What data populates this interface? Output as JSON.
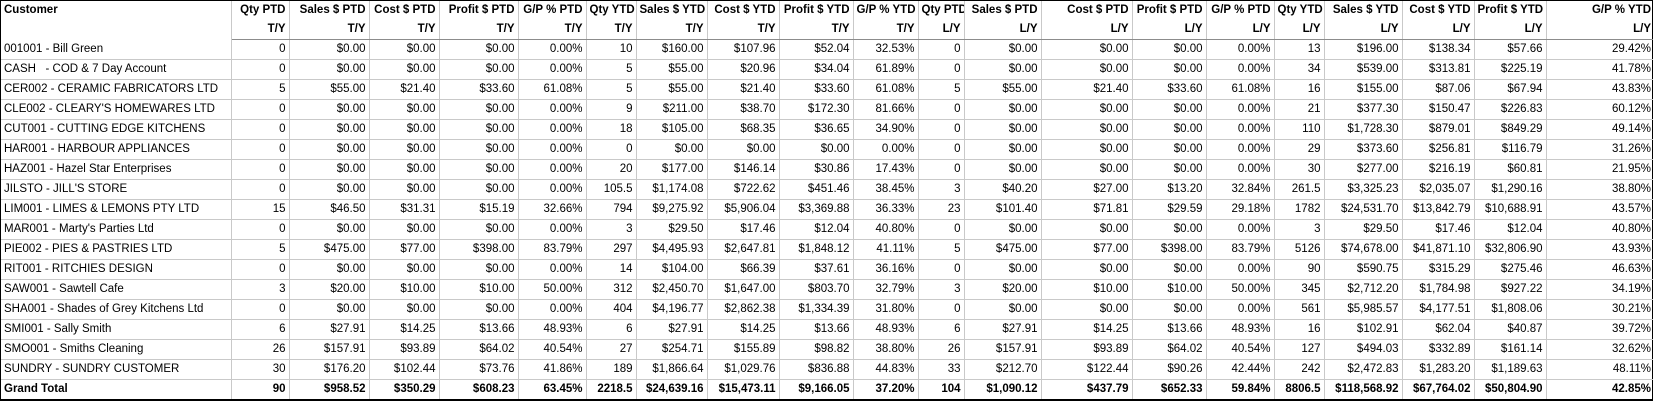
{
  "report": {
    "customer_header": "Customer",
    "period_this_year": "T/Y",
    "period_last_year": "L/Y",
    "columns": [
      {
        "label": "Qty PTD",
        "sub": "T/Y"
      },
      {
        "label": "Sales $ PTD",
        "sub": "T/Y"
      },
      {
        "label": "Cost $ PTD",
        "sub": "T/Y"
      },
      {
        "label": "Profit $ PTD",
        "sub": "T/Y"
      },
      {
        "label": "G/P % PTD",
        "sub": "T/Y"
      },
      {
        "label": "Qty YTD",
        "sub": "T/Y"
      },
      {
        "label": "Sales $ YTD",
        "sub": "T/Y"
      },
      {
        "label": "Cost $ YTD",
        "sub": "T/Y"
      },
      {
        "label": "Profit $ YTD",
        "sub": "T/Y"
      },
      {
        "label": "G/P % YTD",
        "sub": "T/Y"
      },
      {
        "label": "Qty PTD",
        "sub": "L/Y"
      },
      {
        "label": "Sales $ PTD",
        "sub": "L/Y"
      },
      {
        "label": "Cost $ PTD",
        "sub": "L/Y"
      },
      {
        "label": "Profit $ PTD",
        "sub": "L/Y"
      },
      {
        "label": "G/P % PTD",
        "sub": "L/Y"
      },
      {
        "label": "Qty YTD",
        "sub": "L/Y"
      },
      {
        "label": "Sales $ YTD",
        "sub": "L/Y"
      },
      {
        "label": "Cost $ YTD",
        "sub": "L/Y"
      },
      {
        "label": "Profit $ YTD",
        "sub": "L/Y"
      },
      {
        "label": "G/P % YTD",
        "sub": "L/Y"
      }
    ],
    "rows": [
      {
        "customer": "001001 - Bill Green",
        "values": [
          "0",
          "$0.00",
          "$0.00",
          "$0.00",
          "0.00%",
          "10",
          "$160.00",
          "$107.96",
          "$52.04",
          "32.53%",
          "0",
          "$0.00",
          "$0.00",
          "$0.00",
          "0.00%",
          "13",
          "$196.00",
          "$138.34",
          "$57.66",
          "29.42%"
        ]
      },
      {
        "customer": "CASH   - COD & 7 Day Account",
        "values": [
          "0",
          "$0.00",
          "$0.00",
          "$0.00",
          "0.00%",
          "5",
          "$55.00",
          "$20.96",
          "$34.04",
          "61.89%",
          "0",
          "$0.00",
          "$0.00",
          "$0.00",
          "0.00%",
          "34",
          "$539.00",
          "$313.81",
          "$225.19",
          "41.78%"
        ]
      },
      {
        "customer": "CER002 - CERAMIC FABRICATORS LTD",
        "values": [
          "5",
          "$55.00",
          "$21.40",
          "$33.60",
          "61.08%",
          "5",
          "$55.00",
          "$21.40",
          "$33.60",
          "61.08%",
          "5",
          "$55.00",
          "$21.40",
          "$33.60",
          "61.08%",
          "16",
          "$155.00",
          "$87.06",
          "$67.94",
          "43.83%"
        ]
      },
      {
        "customer": "CLE002 - CLEARY'S HOMEWARES LTD",
        "values": [
          "0",
          "$0.00",
          "$0.00",
          "$0.00",
          "0.00%",
          "9",
          "$211.00",
          "$38.70",
          "$172.30",
          "81.66%",
          "0",
          "$0.00",
          "$0.00",
          "$0.00",
          "0.00%",
          "21",
          "$377.30",
          "$150.47",
          "$226.83",
          "60.12%"
        ]
      },
      {
        "customer": "CUT001 - CUTTING EDGE KITCHENS",
        "values": [
          "0",
          "$0.00",
          "$0.00",
          "$0.00",
          "0.00%",
          "18",
          "$105.00",
          "$68.35",
          "$36.65",
          "34.90%",
          "0",
          "$0.00",
          "$0.00",
          "$0.00",
          "0.00%",
          "110",
          "$1,728.30",
          "$879.01",
          "$849.29",
          "49.14%"
        ]
      },
      {
        "customer": "HAR001 - HARBOUR APPLIANCES",
        "values": [
          "0",
          "$0.00",
          "$0.00",
          "$0.00",
          "0.00%",
          "0",
          "$0.00",
          "$0.00",
          "$0.00",
          "0.00%",
          "0",
          "$0.00",
          "$0.00",
          "$0.00",
          "0.00%",
          "29",
          "$373.60",
          "$256.81",
          "$116.79",
          "31.26%"
        ]
      },
      {
        "customer": "HAZ001 - Hazel Star Enterprises",
        "values": [
          "0",
          "$0.00",
          "$0.00",
          "$0.00",
          "0.00%",
          "20",
          "$177.00",
          "$146.14",
          "$30.86",
          "17.43%",
          "0",
          "$0.00",
          "$0.00",
          "$0.00",
          "0.00%",
          "30",
          "$277.00",
          "$216.19",
          "$60.81",
          "21.95%"
        ]
      },
      {
        "customer": "JILSTO - JILL'S STORE",
        "values": [
          "0",
          "$0.00",
          "$0.00",
          "$0.00",
          "0.00%",
          "105.5",
          "$1,174.08",
          "$722.62",
          "$451.46",
          "38.45%",
          "3",
          "$40.20",
          "$27.00",
          "$13.20",
          "32.84%",
          "261.5",
          "$3,325.23",
          "$2,035.07",
          "$1,290.16",
          "38.80%"
        ]
      },
      {
        "customer": "LIM001 - LIMES & LEMONS PTY LTD",
        "values": [
          "15",
          "$46.50",
          "$31.31",
          "$15.19",
          "32.66%",
          "794",
          "$9,275.92",
          "$5,906.04",
          "$3,369.88",
          "36.33%",
          "23",
          "$101.40",
          "$71.81",
          "$29.59",
          "29.18%",
          "1782",
          "$24,531.70",
          "$13,842.79",
          "$10,688.91",
          "43.57%"
        ]
      },
      {
        "customer": "MAR001 - Marty's Parties Ltd",
        "values": [
          "0",
          "$0.00",
          "$0.00",
          "$0.00",
          "0.00%",
          "3",
          "$29.50",
          "$17.46",
          "$12.04",
          "40.80%",
          "0",
          "$0.00",
          "$0.00",
          "$0.00",
          "0.00%",
          "3",
          "$29.50",
          "$17.46",
          "$12.04",
          "40.80%"
        ]
      },
      {
        "customer": "PIE002 - PIES & PASTRIES LTD",
        "values": [
          "5",
          "$475.00",
          "$77.00",
          "$398.00",
          "83.79%",
          "297",
          "$4,495.93",
          "$2,647.81",
          "$1,848.12",
          "41.11%",
          "5",
          "$475.00",
          "$77.00",
          "$398.00",
          "83.79%",
          "5126",
          "$74,678.00",
          "$41,871.10",
          "$32,806.90",
          "43.93%"
        ]
      },
      {
        "customer": "RIT001 - RITCHIES DESIGN",
        "values": [
          "0",
          "$0.00",
          "$0.00",
          "$0.00",
          "0.00%",
          "14",
          "$104.00",
          "$66.39",
          "$37.61",
          "36.16%",
          "0",
          "$0.00",
          "$0.00",
          "$0.00",
          "0.00%",
          "90",
          "$590.75",
          "$315.29",
          "$275.46",
          "46.63%"
        ]
      },
      {
        "customer": "SAW001 - Sawtell Cafe",
        "values": [
          "3",
          "$20.00",
          "$10.00",
          "$10.00",
          "50.00%",
          "312",
          "$2,450.70",
          "$1,647.00",
          "$803.70",
          "32.79%",
          "3",
          "$20.00",
          "$10.00",
          "$10.00",
          "50.00%",
          "345",
          "$2,712.20",
          "$1,784.98",
          "$927.22",
          "34.19%"
        ]
      },
      {
        "customer": "SHA001 - Shades of Grey Kitchens Ltd",
        "values": [
          "0",
          "$0.00",
          "$0.00",
          "$0.00",
          "0.00%",
          "404",
          "$4,196.77",
          "$2,862.38",
          "$1,334.39",
          "31.80%",
          "0",
          "$0.00",
          "$0.00",
          "$0.00",
          "0.00%",
          "561",
          "$5,985.57",
          "$4,177.51",
          "$1,808.06",
          "30.21%"
        ]
      },
      {
        "customer": "SMI001 - Sally Smith",
        "values": [
          "6",
          "$27.91",
          "$14.25",
          "$13.66",
          "48.93%",
          "6",
          "$27.91",
          "$14.25",
          "$13.66",
          "48.93%",
          "6",
          "$27.91",
          "$14.25",
          "$13.66",
          "48.93%",
          "16",
          "$102.91",
          "$62.04",
          "$40.87",
          "39.72%"
        ]
      },
      {
        "customer": "SMO001 - Smiths Cleaning",
        "values": [
          "26",
          "$157.91",
          "$93.89",
          "$64.02",
          "40.54%",
          "27",
          "$254.71",
          "$155.89",
          "$98.82",
          "38.80%",
          "26",
          "$157.91",
          "$93.89",
          "$64.02",
          "40.54%",
          "127",
          "$494.03",
          "$332.89",
          "$161.14",
          "32.62%"
        ]
      },
      {
        "customer": "SUNDRY - SUNDRY CUSTOMER",
        "values": [
          "30",
          "$176.20",
          "$102.44",
          "$73.76",
          "41.86%",
          "189",
          "$1,866.64",
          "$1,029.76",
          "$836.88",
          "44.83%",
          "33",
          "$212.70",
          "$122.44",
          "$90.26",
          "42.44%",
          "242",
          "$2,472.83",
          "$1,283.20",
          "$1,189.63",
          "48.11%"
        ]
      }
    ],
    "grand_total": {
      "customer": "Grand Total",
      "values": [
        "90",
        "$958.52",
        "$350.29",
        "$608.23",
        "63.45%",
        "2218.5",
        "$24,639.16",
        "$15,473.11",
        "$9,166.05",
        "37.20%",
        "104",
        "$1,090.12",
        "$437.79",
        "$652.33",
        "59.84%",
        "8806.5",
        "$118,568.92",
        "$67,764.02",
        "$50,804.90",
        "42.85%"
      ]
    },
    "colors": {
      "grid_line": "#c9c9c9",
      "header_rule": "#8c8c8c",
      "outer_border": "#000000",
      "text": "#000000",
      "background": "#ffffff"
    }
  }
}
